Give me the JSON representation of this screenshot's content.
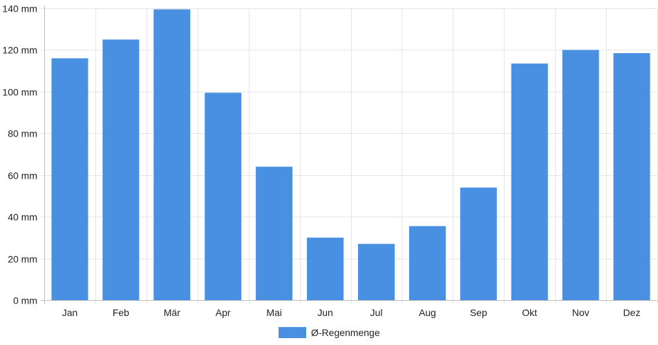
{
  "chart_data": {
    "type": "bar",
    "categories": [
      "Jan",
      "Feb",
      "Mär",
      "Apr",
      "Mai",
      "Jun",
      "Jul",
      "Aug",
      "Sep",
      "Okt",
      "Nov",
      "Dez"
    ],
    "series": [
      {
        "name": "Ø-Regenmenge",
        "values": [
          116,
          125,
          139.5,
          99.5,
          64,
          30,
          27,
          35.5,
          54,
          113.5,
          120,
          118.5
        ],
        "color": "#4a90e2"
      }
    ],
    "y_ticks": [
      "0 mm",
      "20 mm",
      "40 mm",
      "60 mm",
      "80 mm",
      "100 mm",
      "120 mm",
      "140 mm"
    ],
    "ylim": [
      0,
      140
    ],
    "y_unit": "mm",
    "grid": true,
    "legend_position": "bottom-center"
  }
}
